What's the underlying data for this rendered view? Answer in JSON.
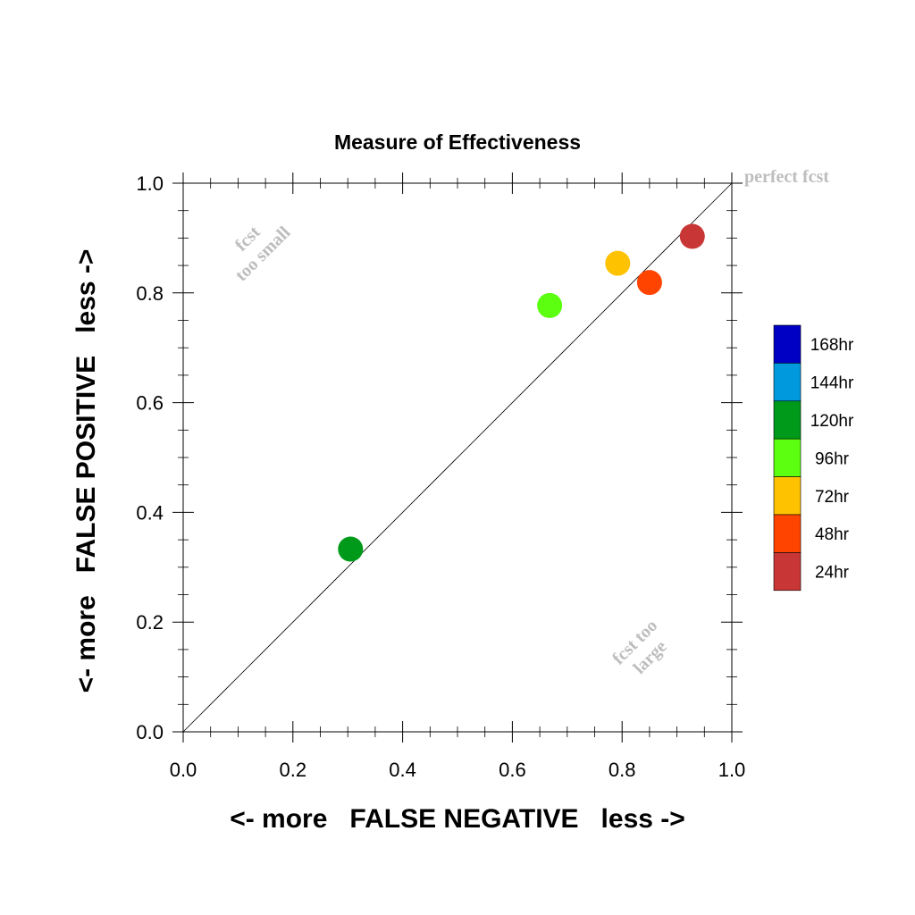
{
  "chart_data": {
    "type": "scatter",
    "title": "Measure of Effectiveness",
    "xlabel": "<- more   FALSE NEGATIVE   less ->",
    "ylabel": "<- more   FALSE POSITIVE   less ->",
    "xlim": [
      0,
      1
    ],
    "ylim": [
      0,
      1
    ],
    "x_ticks": [
      "0.0",
      "0.2",
      "0.4",
      "0.6",
      "0.8",
      "1.0"
    ],
    "y_ticks": [
      "0.0",
      "0.2",
      "0.4",
      "0.6",
      "0.8",
      "1.0"
    ],
    "grid": false,
    "legend_position": "right",
    "annotations": {
      "perfect": "perfect fcst",
      "small_1": "fcst",
      "small_2": "too small",
      "large_1": "fcst too",
      "large_2": "large"
    },
    "legend": [
      {
        "label": "168hr",
        "color": "#0000c4"
      },
      {
        "label": "144hr",
        "color": "#0099dd"
      },
      {
        "label": "120hr",
        "color": "#009a1a"
      },
      {
        "label": "96hr",
        "color": "#5cff10"
      },
      {
        "label": "72hr",
        "color": "#ffc200"
      },
      {
        "label": "48hr",
        "color": "#ff4400"
      },
      {
        "label": "24hr",
        "color": "#c93636"
      }
    ],
    "points": [
      {
        "name": "24hr",
        "x": 0.928,
        "y": 0.903,
        "color": "#c93636"
      },
      {
        "name": "48hr",
        "x": 0.85,
        "y": 0.819,
        "color": "#ff4400"
      },
      {
        "name": "72hr",
        "x": 0.792,
        "y": 0.854,
        "color": "#ffc200"
      },
      {
        "name": "96hr",
        "x": 0.668,
        "y": 0.777,
        "color": "#5cff10"
      },
      {
        "name": "120hr",
        "x": 0.305,
        "y": 0.333,
        "color": "#009a1a"
      }
    ]
  }
}
